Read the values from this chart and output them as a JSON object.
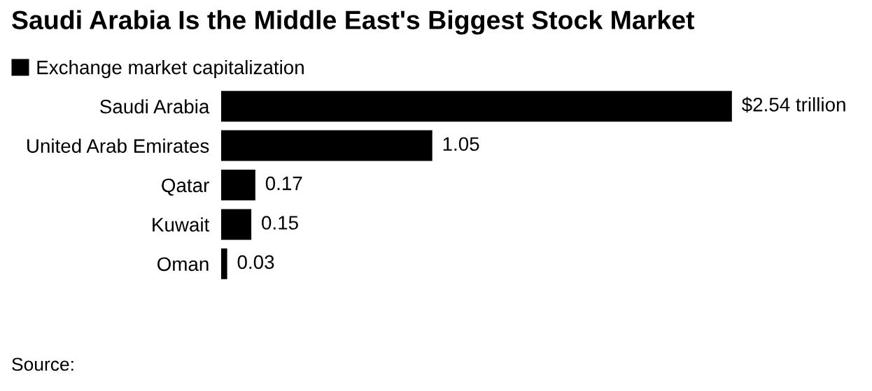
{
  "chart_data": {
    "type": "bar",
    "orientation": "horizontal",
    "title": "Saudi Arabia Is the Middle East's Biggest Stock Market",
    "categories": [
      "Saudi Arabia",
      "United Arab Emirates",
      "Qatar",
      "Kuwait",
      "Oman"
    ],
    "series": [
      {
        "name": "Exchange market capitalization",
        "color": "#000000",
        "values": [
          2.54,
          1.05,
          0.17,
          0.15,
          0.03
        ],
        "value_labels": [
          "$2.54 trillion",
          "1.05",
          "0.17",
          "0.15",
          "0.03"
        ]
      }
    ],
    "legend": "top left",
    "grid": false,
    "annotations": [
      "Source:"
    ]
  }
}
